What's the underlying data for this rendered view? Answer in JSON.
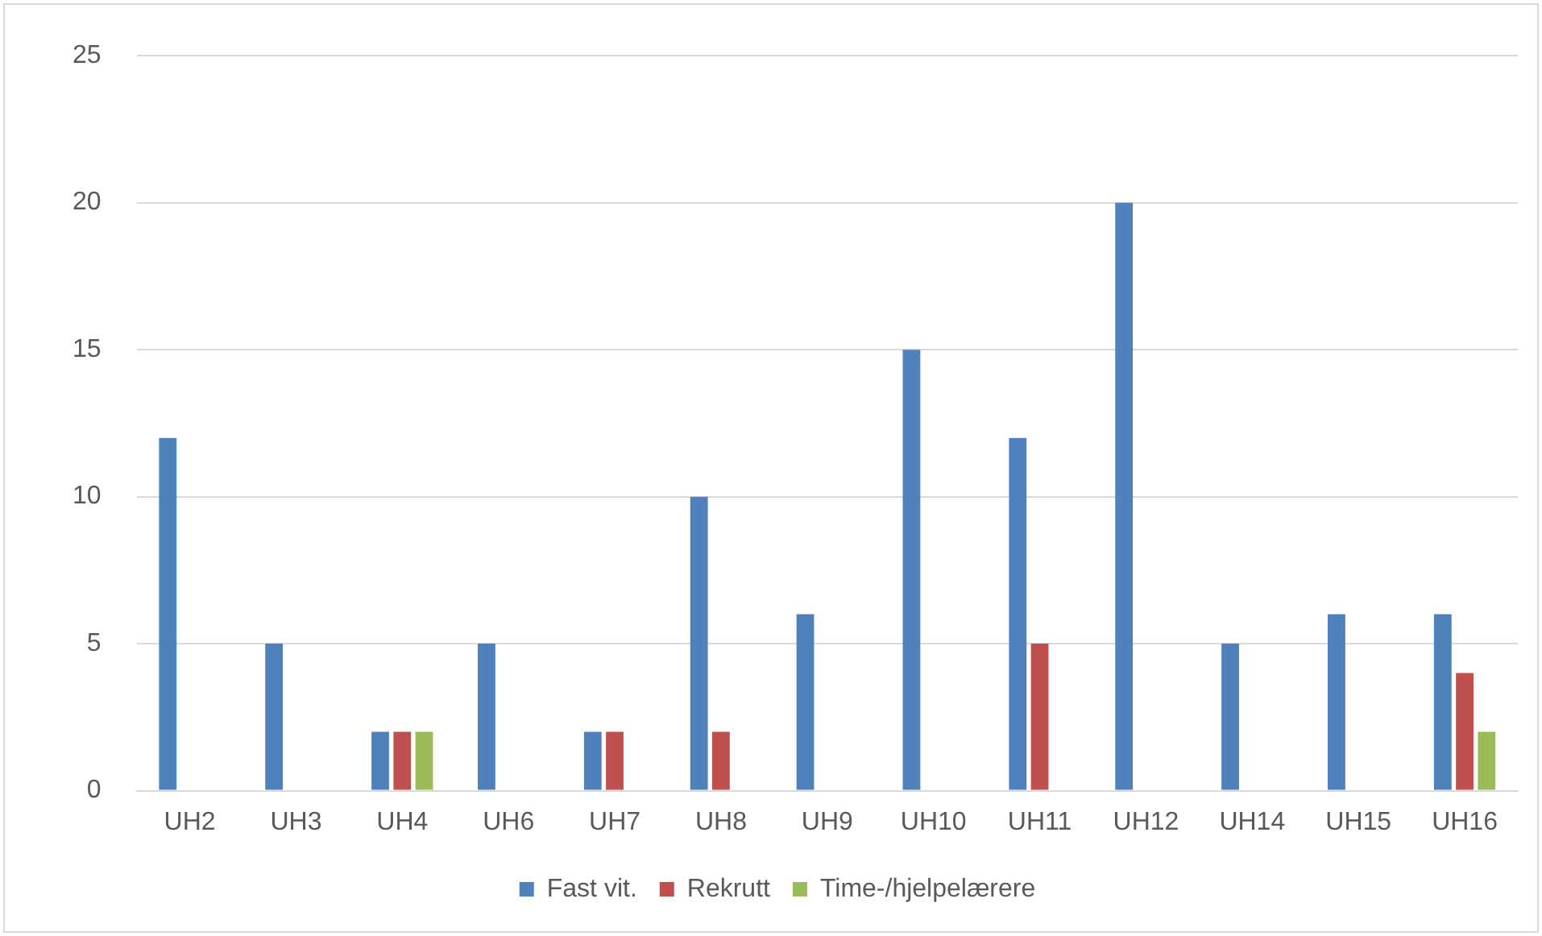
{
  "chart_data": {
    "type": "bar",
    "categories": [
      "UH2",
      "UH3",
      "UH4",
      "UH6",
      "UH7",
      "UH8",
      "UH9",
      "UH10",
      "UH11",
      "UH12",
      "UH14",
      "UH15",
      "UH16"
    ],
    "series": [
      {
        "name": "Fast vit.",
        "color": "#4f81bd",
        "values": [
          12,
          5,
          2,
          5,
          2,
          10,
          6,
          15,
          12,
          20,
          5,
          6,
          6
        ]
      },
      {
        "name": "Rekrutt",
        "color": "#c0504d",
        "values": [
          null,
          null,
          2,
          null,
          2,
          2,
          null,
          null,
          5,
          null,
          null,
          null,
          4
        ]
      },
      {
        "name": "Time-/hjelpelærere",
        "color": "#9bbb59",
        "values": [
          null,
          null,
          2,
          null,
          null,
          null,
          null,
          null,
          null,
          null,
          null,
          null,
          2
        ]
      }
    ],
    "ylim": [
      0,
      25
    ],
    "yticks": [
      0,
      5,
      10,
      15,
      20,
      25
    ],
    "grid": "y",
    "legend": "bottom"
  }
}
